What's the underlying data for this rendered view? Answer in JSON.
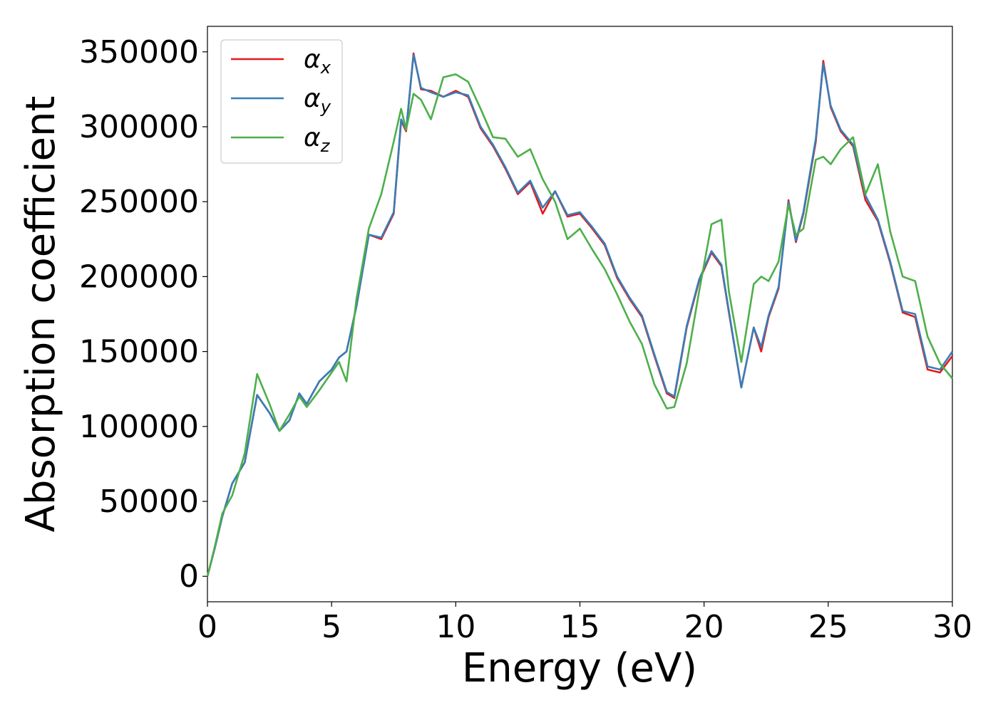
{
  "chart_data": {
    "type": "line",
    "xlabel": "Energy (eV)",
    "ylabel": "Absorption coefficient",
    "xlim": [
      0,
      30
    ],
    "xticks": [
      0,
      5,
      10,
      15,
      20,
      25,
      30
    ],
    "ylim": [
      -17000,
      367000
    ],
    "yticks": [
      0,
      50000,
      100000,
      150000,
      200000,
      250000,
      300000,
      350000
    ],
    "legend": "upper left",
    "x": [
      0,
      0.3,
      0.6,
      1,
      1.5,
      2,
      2.5,
      2.9,
      3.3,
      3.7,
      4,
      4.5,
      5,
      5.3,
      5.6,
      6,
      6.5,
      7,
      7.5,
      7.8,
      8,
      8.3,
      8.6,
      9,
      9.5,
      10,
      10.5,
      11,
      11.5,
      12,
      12.5,
      13,
      13.5,
      14,
      14.5,
      15,
      15.5,
      16,
      16.5,
      17,
      17.5,
      18,
      18.5,
      18.8,
      19.3,
      19.8,
      20.3,
      20.7,
      21,
      21.5,
      22,
      22.3,
      22.6,
      23,
      23.4,
      23.7,
      24,
      24.5,
      24.8,
      25.1,
      25.5,
      26,
      26.5,
      27,
      27.5,
      28,
      28.5,
      29,
      29.5,
      30
    ],
    "series": [
      {
        "name": "αx",
        "color": "#e41a1c",
        "values": [
          0,
          19000,
          40000,
          62000,
          76000,
          121000,
          109000,
          97000,
          104000,
          122000,
          115000,
          130000,
          138000,
          146000,
          150000,
          180000,
          228000,
          225000,
          242000,
          304000,
          297000,
          349000,
          325000,
          324000,
          320000,
          324000,
          320000,
          299000,
          287000,
          272000,
          255000,
          263000,
          242000,
          257000,
          240000,
          242000,
          232000,
          221000,
          199000,
          185000,
          173000,
          147000,
          122000,
          119000,
          166000,
          197000,
          216000,
          207000,
          176000,
          126000,
          166000,
          150000,
          173000,
          192000,
          251000,
          223000,
          242000,
          290000,
          344000,
          313000,
          297000,
          287000,
          251000,
          237000,
          209000,
          176000,
          173000,
          138000,
          136000,
          147000
        ]
      },
      {
        "name": "αy",
        "color": "#377eb8",
        "values": [
          0,
          19000,
          40000,
          62000,
          76000,
          121000,
          109000,
          97000,
          104000,
          122000,
          115000,
          130000,
          138000,
          146000,
          150000,
          180000,
          228000,
          226000,
          243000,
          305000,
          298000,
          348000,
          326000,
          323000,
          320000,
          323000,
          321000,
          300000,
          288000,
          273000,
          256000,
          264000,
          246000,
          257000,
          241000,
          243000,
          233000,
          222000,
          200000,
          186000,
          174000,
          148000,
          123000,
          120000,
          167000,
          198000,
          217000,
          208000,
          177000,
          126000,
          166000,
          153000,
          174000,
          193000,
          250000,
          224000,
          243000,
          292000,
          342000,
          314000,
          298000,
          288000,
          254000,
          238000,
          210000,
          177000,
          175000,
          140000,
          138000,
          150000
        ]
      },
      {
        "name": "αz",
        "color": "#4daf4a",
        "values": [
          0,
          20000,
          42000,
          54000,
          82000,
          135000,
          115000,
          97000,
          108000,
          120000,
          113000,
          124000,
          136000,
          143000,
          130000,
          185000,
          232000,
          255000,
          290000,
          312000,
          298000,
          322000,
          318000,
          305000,
          333000,
          335000,
          330000,
          312000,
          293000,
          292000,
          280000,
          285000,
          265000,
          250000,
          225000,
          232000,
          218000,
          205000,
          188000,
          170000,
          155000,
          128000,
          112000,
          113000,
          142000,
          190000,
          235000,
          238000,
          190000,
          143000,
          195000,
          200000,
          197000,
          210000,
          248000,
          228000,
          232000,
          278000,
          280000,
          275000,
          285000,
          293000,
          255000,
          275000,
          230000,
          200000,
          197000,
          160000,
          142000,
          132000
        ]
      }
    ]
  }
}
